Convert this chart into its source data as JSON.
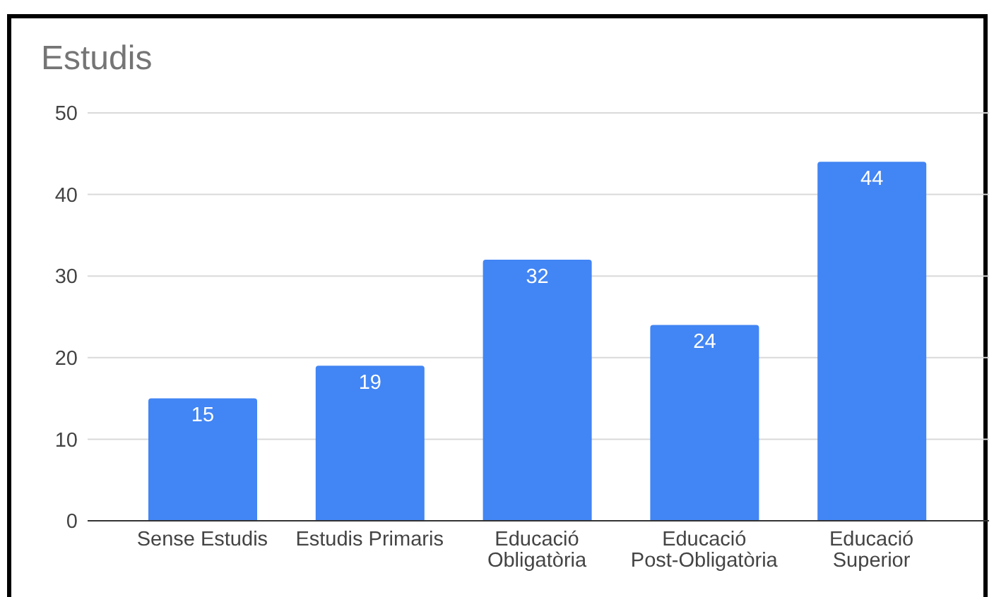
{
  "chart_data": {
    "type": "bar",
    "title": "Estudis",
    "categories": [
      "Sense Estudis",
      "Estudis Primaris",
      "Educació Obligatòria",
      "Educació Post-Obligatòria",
      "Educació Superior"
    ],
    "values": [
      15,
      19,
      32,
      24,
      44
    ],
    "color": "#4285f4",
    "ylim": [
      0,
      50
    ],
    "yticks": [
      0,
      10,
      20,
      30,
      40,
      50
    ],
    "grid": "y",
    "data_labels": true
  }
}
